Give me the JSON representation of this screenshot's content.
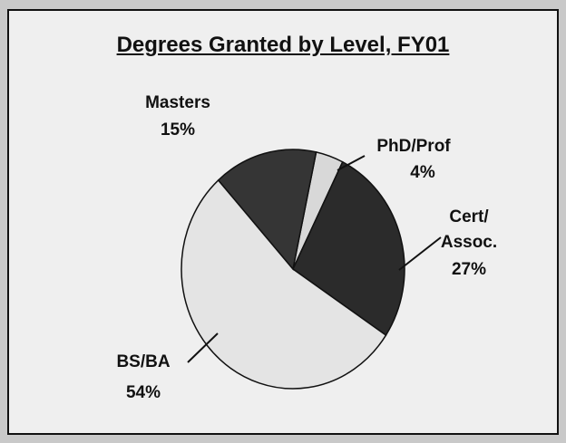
{
  "chart_data": {
    "type": "pie",
    "title": "Degrees Granted by Level, FY01",
    "categories": [
      "PhD/Prof",
      "Cert/\nAssoc.",
      "BS/BA",
      "Masters"
    ],
    "values": [
      4,
      27,
      54,
      15
    ],
    "value_labels": [
      "4%",
      "27%",
      "54%",
      "15%"
    ],
    "colors": [
      "#d8d8d8",
      "#2b2b2b",
      "#e4e4e4",
      "#353535"
    ]
  }
}
